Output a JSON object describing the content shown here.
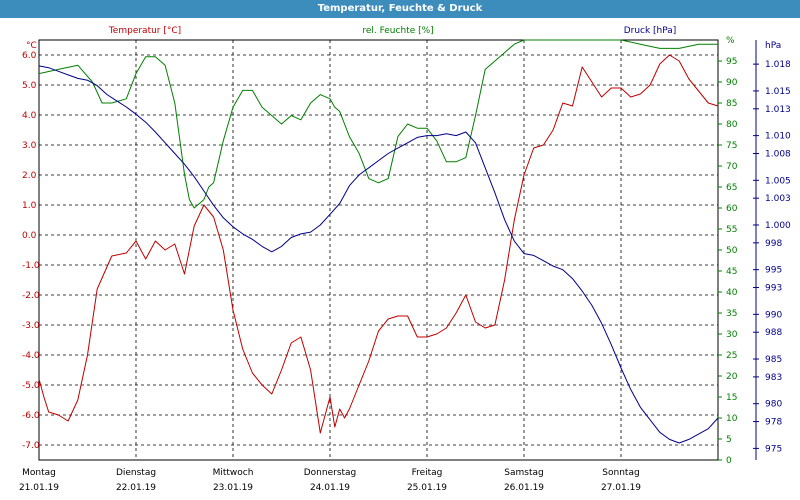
{
  "title": "Temperatur, Feuchte & Druck",
  "chart_data": {
    "type": "line",
    "colors": {
      "temperature": "#c00000",
      "humidity": "#008000",
      "pressure": "#00008b"
    },
    "axes": {
      "temperature": {
        "unit_label": "°C",
        "ylim": [
          -7.5,
          6.5
        ],
        "ticks": [
          "6.0",
          "5.0",
          "4.0",
          "3.0",
          "2.0",
          "1.0",
          "0.0",
          "-1.0",
          "-2.0",
          "-3.0",
          "-4.0",
          "-5.0",
          "-6.0",
          "-7.0"
        ]
      },
      "humidity": {
        "unit_label": "%",
        "ylim": [
          0,
          100
        ],
        "ticks": [
          "0",
          "5",
          "10",
          "15",
          "20",
          "25",
          "30",
          "35",
          "40",
          "45",
          "50",
          "55",
          "60",
          "65",
          "70",
          "75",
          "80",
          "85",
          "90",
          "95"
        ]
      },
      "pressure": {
        "unit_label": "hPa",
        "ylim": [
          973.7,
          1020.7
        ],
        "ticks": [
          "1.018",
          "1.015",
          "1.013",
          "1.010",
          "1.008",
          "1.005",
          "1.003",
          "1.000",
          "998",
          "995",
          "993",
          "990",
          "988",
          "985",
          "983",
          "980",
          "978",
          "975"
        ]
      }
    },
    "series": [
      {
        "name": "Temperatur [°C]",
        "key": "temperature",
        "x": [
          0,
          0.05,
          0.1,
          0.2,
          0.3,
          0.4,
          0.5,
          0.6,
          0.75,
          0.9,
          1.0,
          1.1,
          1.2,
          1.3,
          1.4,
          1.5,
          1.6,
          1.7,
          1.8,
          1.9,
          2.0,
          2.1,
          2.2,
          2.3,
          2.4,
          2.5,
          2.6,
          2.7,
          2.8,
          2.9,
          3.0,
          3.05,
          3.1,
          3.15,
          3.2,
          3.3,
          3.4,
          3.5,
          3.6,
          3.7,
          3.8,
          3.9,
          4.0,
          4.1,
          4.2,
          4.3,
          4.4,
          4.5,
          4.6,
          4.7,
          4.8,
          4.9,
          5.0,
          5.1,
          5.2,
          5.3,
          5.4,
          5.5,
          5.6,
          5.7,
          5.8,
          5.9,
          6.0,
          6.1,
          6.2,
          6.3,
          6.4,
          6.5,
          6.6,
          6.7,
          6.8,
          6.9,
          7.0
        ],
        "values": [
          -4.8,
          -5.4,
          -5.9,
          -6.0,
          -6.2,
          -5.5,
          -4.0,
          -1.8,
          -0.7,
          -0.6,
          -0.2,
          -0.8,
          -0.2,
          -0.5,
          -0.3,
          -1.3,
          0.3,
          1.0,
          0.6,
          -0.5,
          -2.5,
          -3.8,
          -4.6,
          -5.0,
          -5.3,
          -4.5,
          -3.6,
          -3.4,
          -4.5,
          -6.6,
          -5.4,
          -6.4,
          -5.8,
          -6.1,
          -5.8,
          -5.0,
          -4.2,
          -3.2,
          -2.8,
          -2.7,
          -2.7,
          -3.4,
          -3.4,
          -3.3,
          -3.1,
          -2.6,
          -2.0,
          -2.9,
          -3.1,
          -3.0,
          -1.5,
          0.5,
          2.0,
          2.9,
          3.0,
          3.5,
          4.4,
          4.3,
          5.6,
          5.1,
          4.6,
          4.9,
          4.9,
          4.6,
          4.7,
          5.0,
          5.7,
          6.0,
          5.8,
          5.2,
          4.8,
          4.4,
          4.3
        ]
      },
      {
        "name": "rel. Feuchte [%]",
        "key": "humidity",
        "x": [
          0,
          0.2,
          0.4,
          0.55,
          0.65,
          0.75,
          0.9,
          1.0,
          1.1,
          1.2,
          1.3,
          1.4,
          1.5,
          1.55,
          1.6,
          1.7,
          1.75,
          1.8,
          1.9,
          2.0,
          2.1,
          2.2,
          2.3,
          2.4,
          2.5,
          2.6,
          2.7,
          2.8,
          2.9,
          3.0,
          3.05,
          3.1,
          3.2,
          3.3,
          3.4,
          3.5,
          3.6,
          3.7,
          3.8,
          3.9,
          4.0,
          4.1,
          4.2,
          4.3,
          4.4,
          4.5,
          4.6,
          4.7,
          4.8,
          4.9,
          5.0,
          5.2,
          5.4,
          5.6,
          5.8,
          6.0,
          6.2,
          6.4,
          6.6,
          6.8,
          7.0
        ],
        "values": [
          92,
          93,
          94,
          90,
          85,
          85,
          86,
          92,
          96,
          96,
          94,
          85,
          68,
          62,
          60,
          62,
          65,
          66,
          76,
          84,
          88,
          88,
          84,
          82,
          80,
          82,
          81,
          85,
          87,
          86,
          84,
          83,
          77,
          73,
          67,
          66,
          67,
          77,
          80,
          79,
          79,
          76,
          71,
          71,
          72,
          82,
          93,
          95,
          97,
          99,
          100,
          100,
          100,
          100,
          100,
          100,
          99,
          98,
          98,
          99,
          99
        ]
      },
      {
        "name": "Druck [hPa]",
        "key": "pressure",
        "x": [
          0,
          0.1,
          0.2,
          0.3,
          0.4,
          0.5,
          0.6,
          0.7,
          0.8,
          0.9,
          1.0,
          1.1,
          1.2,
          1.3,
          1.4,
          1.5,
          1.6,
          1.7,
          1.8,
          1.9,
          2.0,
          2.1,
          2.2,
          2.3,
          2.4,
          2.5,
          2.6,
          2.7,
          2.8,
          2.9,
          3.0,
          3.1,
          3.2,
          3.3,
          3.4,
          3.5,
          3.6,
          3.7,
          3.8,
          3.9,
          4.0,
          4.1,
          4.2,
          4.3,
          4.4,
          4.5,
          4.6,
          4.7,
          4.8,
          4.9,
          5.0,
          5.1,
          5.2,
          5.3,
          5.4,
          5.5,
          5.6,
          5.7,
          5.8,
          5.9,
          6.0,
          6.1,
          6.2,
          6.3,
          6.4,
          6.5,
          6.6,
          6.7,
          6.8,
          6.9,
          7.0
        ],
        "values": [
          1017.8,
          1017.6,
          1017.2,
          1016.8,
          1016.4,
          1016.2,
          1015.6,
          1014.6,
          1013.9,
          1013.2,
          1012.4,
          1011.5,
          1010.4,
          1009.2,
          1008.0,
          1006.8,
          1005.4,
          1003.8,
          1002.2,
          1000.8,
          999.8,
          999.0,
          998.4,
          997.6,
          997.0,
          997.6,
          998.6,
          999.0,
          999.2,
          1000.0,
          1001.2,
          1002.4,
          1004.4,
          1005.6,
          1006.4,
          1007.2,
          1008.0,
          1008.6,
          1009.2,
          1009.8,
          1010.0,
          1010.0,
          1010.2,
          1010.0,
          1010.4,
          1009.2,
          1006.4,
          1003.6,
          1000.6,
          998.2,
          996.8,
          996.6,
          996.0,
          995.4,
          995.0,
          994.0,
          992.6,
          991.0,
          989.0,
          986.6,
          984.0,
          981.6,
          979.6,
          978.2,
          976.8,
          976.0,
          975.6,
          976.0,
          976.6,
          977.2,
          978.4
        ]
      }
    ],
    "x_axis": {
      "categories": [
        {
          "day": "Montag",
          "date": "21.01.19"
        },
        {
          "day": "Dienstag",
          "date": "22.01.19"
        },
        {
          "day": "Mittwoch",
          "date": "23.01.19"
        },
        {
          "day": "Donnerstag",
          "date": "24.01.19"
        },
        {
          "day": "Freitag",
          "date": "25.01.19"
        },
        {
          "day": "Samstag",
          "date": "26.01.19"
        },
        {
          "day": "Sonntag",
          "date": "27.01.19"
        }
      ],
      "range": [
        0,
        7
      ]
    },
    "grid": true
  }
}
